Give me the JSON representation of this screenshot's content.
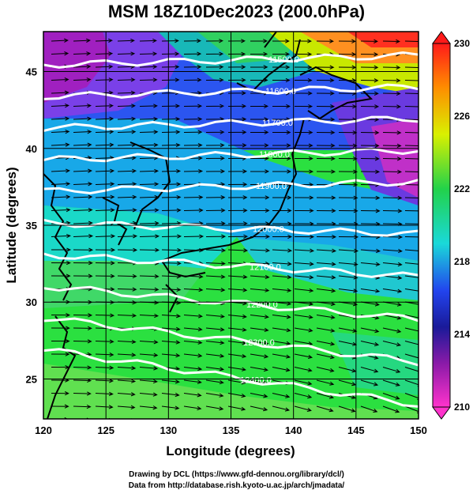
{
  "title": "MSM 18Z10Dec2023 (200.0hPa)",
  "x_axis": {
    "label": "Longitude (degrees)",
    "range": [
      120,
      150
    ],
    "ticks": [
      "120",
      "125",
      "130",
      "135",
      "140",
      "145",
      "150"
    ]
  },
  "y_axis": {
    "label": "Latitude  (degrees)",
    "range": [
      22.4,
      47.6
    ],
    "ticks": [
      "25",
      "30",
      "35",
      "40",
      "45"
    ]
  },
  "colorbar": {
    "min": 210,
    "max": 230,
    "tick_labels": [
      "230",
      "226",
      "222",
      "218",
      "214",
      "210"
    ],
    "colors": [
      "#ff1a1a",
      "#ff8c00",
      "#d9f000",
      "#22d24a",
      "#1ad9d9",
      "#2244ee",
      "#1a1a99",
      "#ff33cc"
    ]
  },
  "contours": {
    "color": "#ffffff",
    "labels": [
      "11500.0",
      "11600.0",
      "11700.0",
      "11800.0",
      "11900.0",
      "12000.0",
      "12100.0",
      "12200.0",
      "12300.0",
      "12400.0"
    ]
  },
  "wind_vectors": {
    "color": "#000000",
    "direction": "westerly"
  },
  "footer": {
    "line1": "Drawing by DCL (https://www.gfd-dennou.org/library/dcl/)",
    "line2": "Data from http://database.rish.kyoto-u.ac.jp/arch/jmadata/"
  }
}
